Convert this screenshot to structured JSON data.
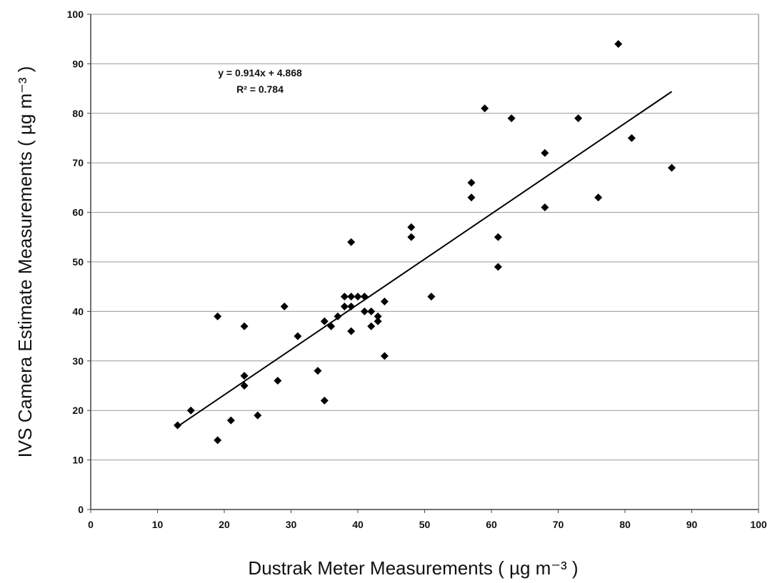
{
  "chart_data": {
    "type": "scatter",
    "title": "",
    "xlabel": "Dustrak Meter Measurements ( µg m⁻³ )",
    "ylabel": "IVS Camera Estimate Measurements ( µg m⁻³ )",
    "xlim": [
      0,
      100
    ],
    "ylim": [
      0,
      100
    ],
    "x_ticks": [
      0,
      10,
      20,
      30,
      40,
      50,
      60,
      70,
      80,
      90,
      100
    ],
    "y_ticks": [
      0,
      10,
      20,
      30,
      40,
      50,
      60,
      70,
      80,
      90,
      100
    ],
    "grid": "horizontal",
    "marker": "diamond",
    "marker_color": "#000000",
    "points": [
      [
        13,
        17
      ],
      [
        15,
        20
      ],
      [
        19,
        14
      ],
      [
        19,
        39
      ],
      [
        21,
        18
      ],
      [
        23,
        37
      ],
      [
        23,
        27
      ],
      [
        23,
        25
      ],
      [
        25,
        19
      ],
      [
        28,
        26
      ],
      [
        29,
        41
      ],
      [
        31,
        35
      ],
      [
        34,
        28
      ],
      [
        35,
        22
      ],
      [
        35,
        38
      ],
      [
        36,
        37
      ],
      [
        37,
        39
      ],
      [
        38,
        43
      ],
      [
        38,
        41
      ],
      [
        39,
        43
      ],
      [
        39,
        41
      ],
      [
        39,
        54
      ],
      [
        39,
        36
      ],
      [
        40,
        43
      ],
      [
        41,
        43
      ],
      [
        41,
        40
      ],
      [
        42,
        40
      ],
      [
        42,
        37
      ],
      [
        43,
        39
      ],
      [
        43,
        38
      ],
      [
        44,
        42
      ],
      [
        44,
        31
      ],
      [
        48,
        57
      ],
      [
        48,
        55
      ],
      [
        51,
        43
      ],
      [
        57,
        66
      ],
      [
        57,
        63
      ],
      [
        59,
        81
      ],
      [
        61,
        55
      ],
      [
        61,
        49
      ],
      [
        63,
        79
      ],
      [
        68,
        72
      ],
      [
        68,
        61
      ],
      [
        73,
        79
      ],
      [
        76,
        63
      ],
      [
        79,
        94
      ],
      [
        81,
        75
      ],
      [
        87,
        69
      ]
    ],
    "trendline": {
      "slope": 0.914,
      "intercept": 4.868,
      "x_range": [
        13,
        87
      ],
      "equation_label": "y = 0.914x + 4.868",
      "r2_label": "R² = 0.784"
    }
  }
}
